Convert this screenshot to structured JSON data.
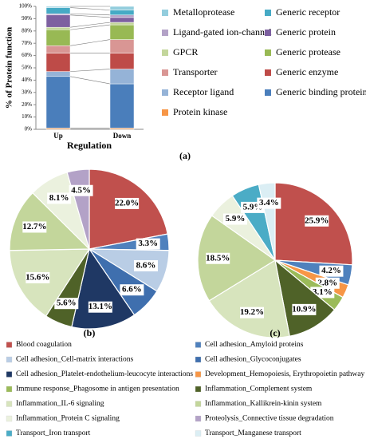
{
  "chart_data": [
    {
      "type": "bar",
      "stacked": true,
      "caption": "(a)",
      "y_label": "% of Protein function",
      "x_label": "Regulation",
      "categories": [
        "Up",
        "Down"
      ],
      "ylim": [
        0,
        100
      ],
      "yticks": [
        {
          "value": 0,
          "label": "0%"
        },
        {
          "value": 10,
          "label": "10%"
        },
        {
          "value": 20,
          "label": "20%"
        },
        {
          "value": 30,
          "label": "30%"
        },
        {
          "value": 40,
          "label": "40%"
        },
        {
          "value": 50,
          "label": "50%"
        },
        {
          "value": 60,
          "label": "60%"
        },
        {
          "value": 70,
          "label": "70%"
        },
        {
          "value": 80,
          "label": "80%"
        },
        {
          "value": 90,
          "label": "90%"
        },
        {
          "value": 100,
          "label": "100%"
        }
      ],
      "series": [
        {
          "name": "Protein kinase",
          "color": "#f79646",
          "values": [
            1,
            1
          ]
        },
        {
          "name": "Generic binding protein",
          "color": "#4a7ebb",
          "values": [
            42,
            36
          ]
        },
        {
          "name": "Receptor ligand",
          "color": "#95b3d7",
          "values": [
            4,
            12
          ]
        },
        {
          "name": "Generic enzyme",
          "color": "#be4b48",
          "values": [
            15,
            13
          ]
        },
        {
          "name": "Transporter",
          "color": "#d99694",
          "values": [
            6,
            11
          ]
        },
        {
          "name": "Generic protease",
          "color": "#98b954",
          "values": [
            13,
            12
          ]
        },
        {
          "name": "GPCR",
          "color": "#c3d69b",
          "values": [
            2,
            2
          ]
        },
        {
          "name": "Generic protein",
          "color": "#7d60a0",
          "values": [
            10,
            4
          ]
        },
        {
          "name": "Ligand-gated ion-channel",
          "color": "#b3a2c7",
          "values": [
            1,
            2
          ]
        },
        {
          "name": "Generic receptor",
          "color": "#46aac5",
          "values": [
            5,
            4
          ]
        },
        {
          "name": "Metalloprotease",
          "color": "#93cddd",
          "values": [
            1,
            3
          ]
        }
      ]
    },
    {
      "type": "pie",
      "caption": "(b)",
      "categories": [
        "Blood coagulation",
        "Cell adhesion_Amyloid proteins",
        "Cell adhesion_Cell-matrix interactions",
        "Cell adhesion_Glycoconjugates",
        "Cell adhesion_Platelet-endothelium-leucocyte interactions",
        "Inflammation_Complement system",
        "Inflammation_IL-6 signaling",
        "Inflammation_Kallikrein-kinin system",
        "Inflammation_Protein C signaling",
        "Proteolysis_Connective tissue degradation"
      ],
      "values": [
        22.0,
        3.3,
        8.6,
        6.6,
        13.1,
        5.6,
        15.6,
        12.7,
        8.1,
        4.5
      ],
      "value_labels": [
        "22.0%",
        "3.3%",
        "8.6%",
        "6.6%",
        "13.1%",
        "5.6%",
        "15.6%",
        "12.7%",
        "8.1%",
        "4.5%"
      ]
    },
    {
      "type": "pie",
      "caption": "(c)",
      "categories": [
        "Blood coagulation",
        "Cell adhesion_Amyloid proteins",
        "Development_Hemopoiesis, Erythropoietin pathway",
        "Immune response_Phagosome in antigen presentation",
        "Inflammation_Complement system",
        "Inflammation_IL-6 signaling",
        "Inflammation_Kallikrein-kinin system",
        "Inflammation_Protein C signaling",
        "Transport_Iron transport",
        "Transport_Manganese  transport"
      ],
      "values": [
        25.9,
        4.2,
        2.8,
        3.1,
        10.9,
        19.2,
        18.5,
        5.9,
        5.9,
        3.4
      ],
      "value_labels": [
        "25.9%",
        "4.2%",
        "2.8%",
        "3.1%",
        "10.9%",
        "19.2%",
        "18.5%",
        "5.9%",
        "5.9%",
        "3.4%"
      ]
    }
  ],
  "pie_legend": [
    {
      "name": "Blood coagulation",
      "color": "#c0504d"
    },
    {
      "name": "Cell adhesion_Amyloid proteins",
      "color": "#4f81bd"
    },
    {
      "name": "Cell adhesion_Cell-matrix interactions",
      "color": "#b9cde5"
    },
    {
      "name": "Cell adhesion_Glycoconjugates",
      "color": "#3f6fae"
    },
    {
      "name": "Cell adhesion_Platelet-endothelium-leucocyte interactions",
      "color": "#1f3864"
    },
    {
      "name": "Development_Hemopoiesis, Erythropoietin pathway",
      "color": "#f79646"
    },
    {
      "name": "Immune response_Phagosome in antigen presentation",
      "color": "#9bbb59"
    },
    {
      "name": "Inflammation_Complement system",
      "color": "#4f6228"
    },
    {
      "name": "Inflammation_IL-6 signaling",
      "color": "#d7e4bd"
    },
    {
      "name": "Inflammation_Kallikrein-kinin system",
      "color": "#c3d69b"
    },
    {
      "name": "Inflammation_Protein C signaling",
      "color": "#ebf1de"
    },
    {
      "name": "Proteolysis_Connective tissue degradation",
      "color": "#b3a2c7"
    },
    {
      "name": "Transport_Iron transport",
      "color": "#4bacc6"
    },
    {
      "name": "Transport_Manganese  transport",
      "color": "#dbeef4"
    }
  ]
}
